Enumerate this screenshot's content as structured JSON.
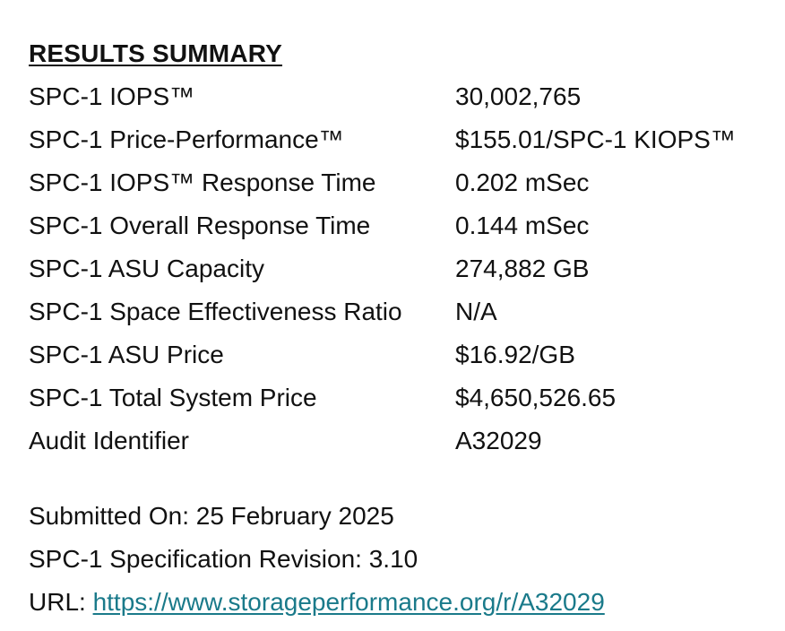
{
  "section_title": "RESULTS SUMMARY",
  "rows": [
    {
      "label": "SPC-1 IOPS™",
      "value": "30,002,765"
    },
    {
      "label": "SPC-1 Price-Performance™",
      "value": "$155.01/SPC-1 KIOPS™"
    },
    {
      "label": "SPC-1 IOPS™ Response Time",
      "value": "0.202 mSec"
    },
    {
      "label": "SPC-1 Overall Response Time",
      "value": "0.144 mSec"
    },
    {
      "label": "SPC-1 ASU Capacity",
      "value": "274,882 GB"
    },
    {
      "label": "SPC-1 Space Effectiveness Ratio",
      "value": "N/A"
    },
    {
      "label": "SPC-1 ASU Price",
      "value": "$16.92/GB"
    },
    {
      "label": "SPC-1 Total System Price",
      "value": "$4,650,526.65"
    },
    {
      "label": "Audit Identifier",
      "value": "A32029"
    }
  ],
  "footer": {
    "submitted": "Submitted On: 25 February 2025",
    "revision": "SPC-1 Specification Revision: 3.10",
    "url_label": "URL: ",
    "url": "https://www.storageperformance.org/r/A32029"
  },
  "colors": {
    "text": "#111111",
    "link": "#1a7a8a",
    "background": "#ffffff"
  }
}
